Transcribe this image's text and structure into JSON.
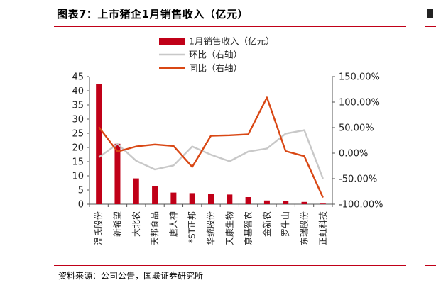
{
  "title": "图表7：上市猪企1月销售收入（亿元）",
  "source": "资料来源：公司公告，国联证券研究所",
  "colors": {
    "bar": "#c00018",
    "mom": "#c8c8c8",
    "yoy": "#d94714",
    "accent": "#c00018"
  },
  "chart_data": {
    "type": "bar",
    "categories": [
      "温氏股份",
      "新希望",
      "大北农",
      "天邦食品",
      "唐人神",
      "*ST正邦",
      "华统股份",
      "天康生物",
      "京基智农",
      "金新农",
      "罗牛山",
      "东瑞股份",
      "正虹科技"
    ],
    "series": [
      {
        "name": "1月销售收入（亿元）",
        "axis": "left",
        "type": "bar",
        "values": [
          42.3,
          21.3,
          9.1,
          6.3,
          4.1,
          3.9,
          3.5,
          3.4,
          2.5,
          1.3,
          1.1,
          0.8,
          0.2
        ]
      },
      {
        "name": "环比（右轴）",
        "axis": "right",
        "type": "line",
        "values": [
          -8,
          18,
          -15,
          -32,
          -24,
          13,
          -3,
          -16,
          3,
          9,
          38,
          45,
          -50
        ]
      },
      {
        "name": "同比（右轴）",
        "axis": "right",
        "type": "line",
        "values": [
          51,
          3,
          13,
          17,
          14,
          -27,
          34,
          35,
          37,
          109,
          4,
          -6,
          -87
        ]
      }
    ],
    "yleft": {
      "lim": [
        0,
        45
      ],
      "ticks": [
        "0",
        "5",
        "10",
        "15",
        "20",
        "25",
        "30",
        "35",
        "40",
        "45"
      ]
    },
    "yright": {
      "lim": [
        -100,
        150
      ],
      "ticks": [
        "-100.00%",
        "-50.00%",
        "0.00%",
        "50.00%",
        "100.00%",
        "150.00%"
      ]
    },
    "legend_position": "top-center",
    "grid": false
  }
}
